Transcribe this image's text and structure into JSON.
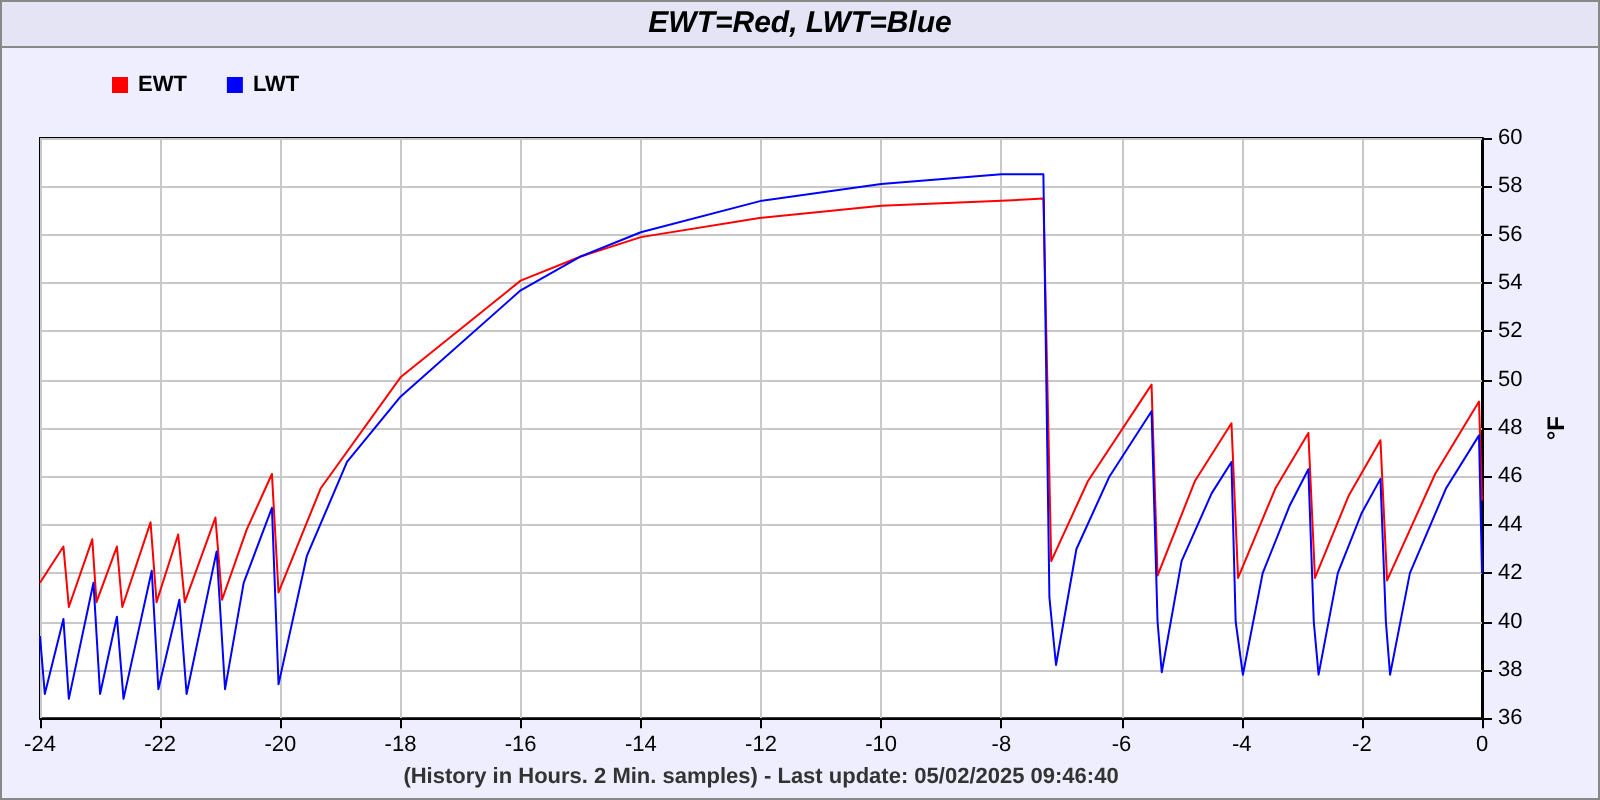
{
  "chart_data": {
    "type": "line",
    "title": "EWT=Red, LWT=Blue",
    "xlabel": "(History in Hours. 2 Min. samples) - Last update: 05/02/2025 09:46:40",
    "ylabel": "°F",
    "xlim": [
      -24,
      0
    ],
    "xticks": [
      -24,
      -22,
      -20,
      -18,
      -16,
      -14,
      -12,
      -10,
      -8,
      -6,
      -4,
      -2,
      0
    ],
    "ylim": [
      36,
      60
    ],
    "yticks": [
      36,
      38,
      40,
      42,
      44,
      46,
      48,
      50,
      52,
      54,
      56,
      58,
      60
    ],
    "grid": true,
    "legend": "top left",
    "marker": "none",
    "line_style": "solid",
    "series": [
      {
        "name": "EWT",
        "color": "#ff0000",
        "x": [
          -24,
          -23.61,
          -23.52,
          -23.13,
          -23.06,
          -22.72,
          -22.63,
          -22.16,
          -22.06,
          -21.7,
          -21.59,
          -21.08,
          -20.97,
          -20.56,
          -20.14,
          -20.03,
          -19.33,
          -18,
          -16,
          -15,
          -14,
          -12,
          -10,
          -8,
          -7.3,
          -7.17,
          -6.56,
          -5.5,
          -5.4,
          -4.78,
          -4.17,
          -4.06,
          -3.44,
          -2.89,
          -2.78,
          -2.22,
          -1.69,
          -1.58,
          -0.78,
          -0.05,
          0
        ],
        "values": [
          41.6,
          43.1,
          40.6,
          43.4,
          40.8,
          43.1,
          40.6,
          44.1,
          40.8,
          43.6,
          40.8,
          44.3,
          40.9,
          43.8,
          46.1,
          41.2,
          45.5,
          50.1,
          54.1,
          55.1,
          55.9,
          56.7,
          57.2,
          57.4,
          57.5,
          42.5,
          45.8,
          49.8,
          41.9,
          45.8,
          48.2,
          41.8,
          45.5,
          47.8,
          41.8,
          45.2,
          47.5,
          41.7,
          46.1,
          49.1,
          45
        ]
      },
      {
        "name": "LWT",
        "color": "#0000ff",
        "x": [
          -24,
          -23.92,
          -23.61,
          -23.52,
          -23.11,
          -23.0,
          -22.72,
          -22.61,
          -22.14,
          -22.03,
          -21.68,
          -21.56,
          -21.06,
          -20.92,
          -20.61,
          -20.14,
          -20.03,
          -19.56,
          -18.89,
          -18,
          -16,
          -15,
          -14,
          -12,
          -10,
          -8,
          -7.3,
          -7.2,
          -7.09,
          -6.75,
          -6.2,
          -5.5,
          -5.4,
          -5.33,
          -5.0,
          -4.5,
          -4.17,
          -4.1,
          -3.98,
          -3.65,
          -3.2,
          -2.89,
          -2.8,
          -2.72,
          -2.4,
          -2.0,
          -1.69,
          -1.6,
          -1.53,
          -1.2,
          -0.6,
          -0.05,
          0
        ],
        "values": [
          39.4,
          37.0,
          40.1,
          36.8,
          41.6,
          37.0,
          40.2,
          36.8,
          42.1,
          37.2,
          40.9,
          37.0,
          42.9,
          37.2,
          41.6,
          44.7,
          37.4,
          42.7,
          46.6,
          49.3,
          53.7,
          55.1,
          56.1,
          57.4,
          58.1,
          58.5,
          58.5,
          41.0,
          38.2,
          43.0,
          46.0,
          48.7,
          40.0,
          37.9,
          42.5,
          45.3,
          46.6,
          40.0,
          37.8,
          42.0,
          44.8,
          46.3,
          40.0,
          37.8,
          42.0,
          44.5,
          45.9,
          40.0,
          37.8,
          42.0,
          45.5,
          47.7,
          42.0
        ]
      }
    ]
  }
}
